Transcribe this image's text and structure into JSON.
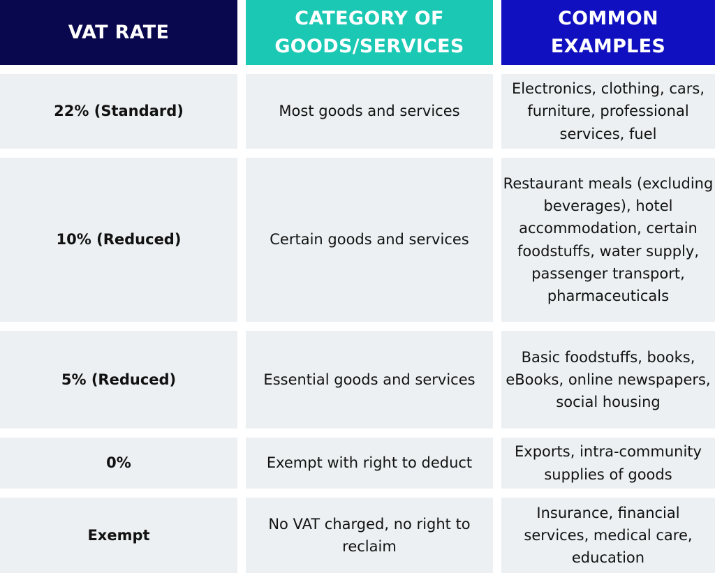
{
  "table": {
    "headers": [
      "VAT RATE",
      "CATEGORY OF GOODS/SERVICES",
      "COMMON EXAMPLES"
    ],
    "rows": [
      {
        "rate": "22% (Standard)",
        "category": "Most goods and services",
        "examples": "Electronics, clothing, cars, furniture, professional services, fuel"
      },
      {
        "rate": "10% (Reduced)",
        "category": "Certain goods and services",
        "examples": "Restaurant meals (excluding beverages), hotel accommodation, certain foodstuffs, water supply, passenger transport, pharmaceuticals"
      },
      {
        "rate": "5% (Reduced)",
        "category": "Essential goods and services",
        "examples": "Basic foodstuffs, books, eBooks, online newspapers, social housing"
      },
      {
        "rate": "0%",
        "category": "Exempt with right to deduct",
        "examples": "Exports, intra-community supplies of goods"
      },
      {
        "rate": "Exempt",
        "category": "No VAT charged, no right to reclaim",
        "examples": "Insurance, financial services, medical care, education"
      }
    ]
  },
  "colors": {
    "header_col1": "#09084f",
    "header_col2": "#1ac8b3",
    "header_col3": "#1010c0",
    "row_background": "#ecf0f2"
  }
}
